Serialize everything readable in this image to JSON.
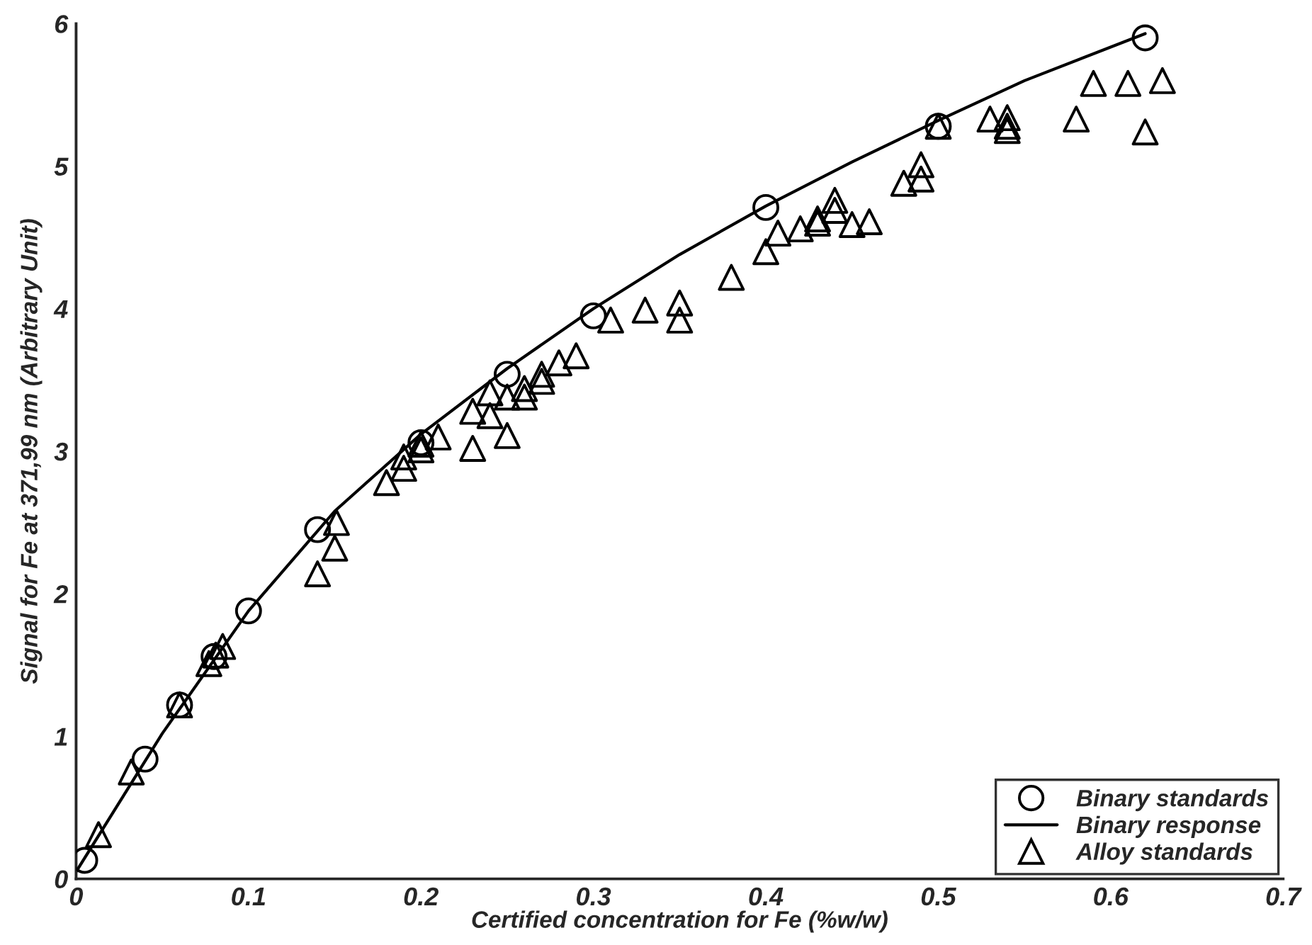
{
  "chart_data": {
    "type": "scatter",
    "xlabel": "Certified concentration for Fe (%w/w)",
    "ylabel": "Signal for Fe at 371,99 nm (Arbitrary Unit)",
    "xlim": [
      0,
      0.7
    ],
    "ylim": [
      0,
      6
    ],
    "xticks": [
      0,
      0.1,
      0.2,
      0.3,
      0.4,
      0.5,
      0.6,
      0.7
    ],
    "yticks": [
      0,
      1,
      2,
      3,
      4,
      5,
      6
    ],
    "grid": false,
    "legend": "bottom right",
    "series": [
      {
        "name": "Binary standards",
        "marker": "circle",
        "color": "#000000",
        "x": [
          0.005,
          0.04,
          0.06,
          0.08,
          0.1,
          0.14,
          0.2,
          0.25,
          0.3,
          0.4,
          0.5,
          0.62
        ],
        "values": [
          0.13,
          0.84,
          1.22,
          1.56,
          1.88,
          2.45,
          3.06,
          3.54,
          3.95,
          4.71,
          5.28,
          5.9
        ]
      },
      {
        "name": "Binary response",
        "type": "line",
        "marker": "none",
        "line_style": "solid",
        "color": "#000000",
        "x": [
          0,
          0.05,
          0.1,
          0.15,
          0.2,
          0.25,
          0.3,
          0.35,
          0.4,
          0.45,
          0.5,
          0.55,
          0.62
        ],
        "values": [
          0.05,
          1.02,
          1.88,
          2.58,
          3.12,
          3.58,
          4.0,
          4.38,
          4.72,
          5.03,
          5.32,
          5.6,
          5.93
        ]
      },
      {
        "name": "Alloy standards",
        "marker": "triangle",
        "color": "#000000",
        "x": [
          0.013,
          0.032,
          0.06,
          0.077,
          0.081,
          0.085,
          0.14,
          0.15,
          0.151,
          0.18,
          0.19,
          0.19,
          0.2,
          0.2,
          0.21,
          0.23,
          0.23,
          0.24,
          0.24,
          0.25,
          0.25,
          0.26,
          0.26,
          0.27,
          0.27,
          0.28,
          0.29,
          0.31,
          0.33,
          0.35,
          0.35,
          0.38,
          0.4,
          0.407,
          0.42,
          0.43,
          0.43,
          0.44,
          0.44,
          0.45,
          0.46,
          0.48,
          0.49,
          0.49,
          0.5,
          0.53,
          0.54,
          0.54,
          0.54,
          0.58,
          0.59,
          0.61,
          0.63,
          0.62
        ],
        "values": [
          0.31,
          0.75,
          1.22,
          1.51,
          1.57,
          1.63,
          2.14,
          2.32,
          2.5,
          2.78,
          2.88,
          2.96,
          3.01,
          3.05,
          3.1,
          3.02,
          3.28,
          3.41,
          3.25,
          3.11,
          3.38,
          3.38,
          3.44,
          3.54,
          3.49,
          3.62,
          3.67,
          3.92,
          3.99,
          4.04,
          3.92,
          4.22,
          4.4,
          4.53,
          4.56,
          4.63,
          4.6,
          4.76,
          4.69,
          4.59,
          4.61,
          4.88,
          4.91,
          5.01,
          5.28,
          5.33,
          5.34,
          5.28,
          5.25,
          5.33,
          5.58,
          5.58,
          5.6,
          5.24
        ]
      }
    ]
  }
}
